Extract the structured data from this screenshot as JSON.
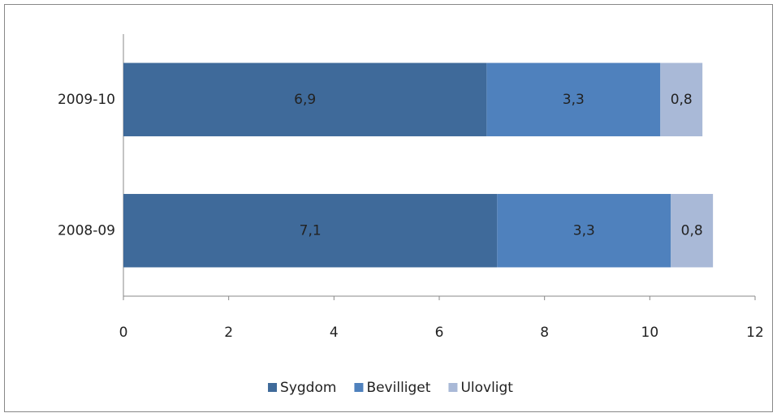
{
  "chart_data": {
    "type": "hbar",
    "stacked": true,
    "categories": [
      "2009-10",
      "2008-09"
    ],
    "series": [
      {
        "name": "Sygdom",
        "color": "#3f6a9a",
        "values": [
          6.9,
          7.1
        ],
        "value_labels": [
          "6,9",
          "7,1"
        ]
      },
      {
        "name": "Bevilliget",
        "color": "#4f81bd",
        "values": [
          3.3,
          3.3
        ],
        "value_labels": [
          "3,3",
          "3,3"
        ]
      },
      {
        "name": "Ulovligt",
        "color": "#a9b9d7",
        "values": [
          0.8,
          0.8
        ],
        "value_labels": [
          "0,8",
          "0,8"
        ]
      }
    ],
    "xlim": [
      0,
      12
    ],
    "xticks": [
      0,
      2,
      4,
      6,
      8,
      10,
      12
    ],
    "grid": false,
    "legend": "bottom"
  }
}
